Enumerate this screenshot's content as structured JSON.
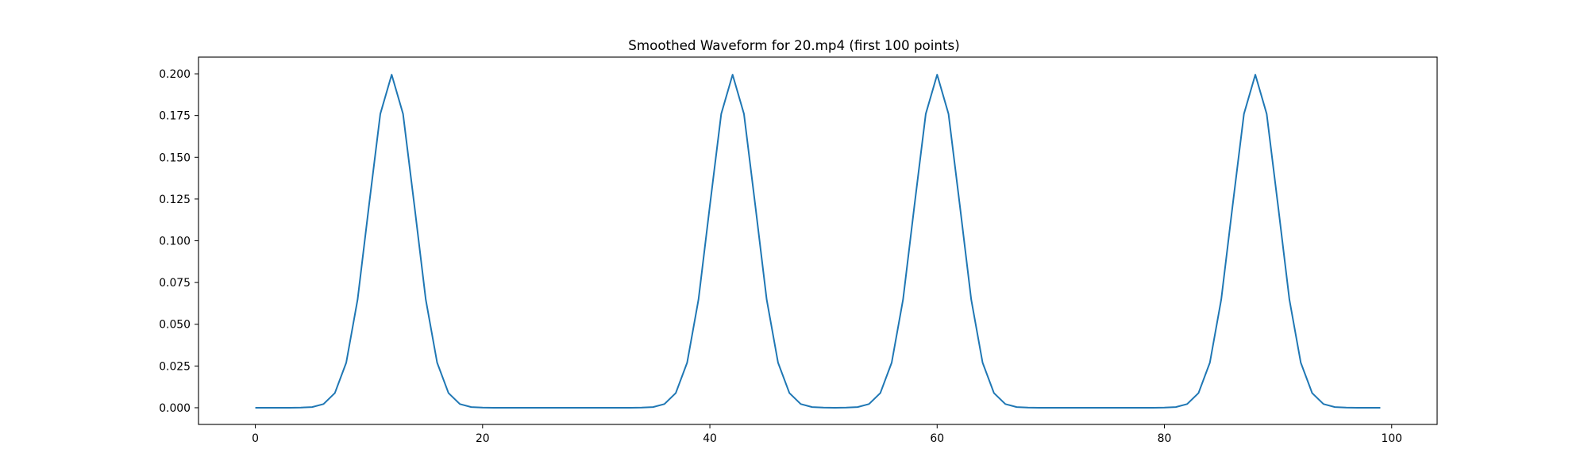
{
  "chart_data": {
    "type": "line",
    "title": "Smoothed Waveform for 20.mp4 (first 100 points)",
    "xlabel": "",
    "ylabel": "",
    "xlim": [
      -5,
      104
    ],
    "ylim": [
      -0.01,
      0.21
    ],
    "x_ticks": [
      0,
      20,
      40,
      60,
      80,
      100
    ],
    "x_tick_labels": [
      "0",
      "20",
      "40",
      "60",
      "80",
      "100"
    ],
    "y_ticks": [
      0.0,
      0.025,
      0.05,
      0.075,
      0.1,
      0.125,
      0.15,
      0.175,
      0.2
    ],
    "y_tick_labels": [
      "0.000",
      "0.025",
      "0.050",
      "0.075",
      "0.100",
      "0.125",
      "0.150",
      "0.175",
      "0.200"
    ],
    "grid": false,
    "line_color": "#1f77b4",
    "series": [
      {
        "x": [
          0,
          1,
          2,
          3,
          4,
          5,
          6,
          7,
          8,
          9,
          10,
          11,
          12,
          13,
          14,
          15,
          16,
          17,
          18,
          19,
          20,
          21,
          22,
          23,
          24,
          25,
          26,
          27,
          28,
          29,
          30,
          31,
          32,
          33,
          34,
          35,
          36,
          37,
          38,
          39,
          40,
          41,
          42,
          43,
          44,
          45,
          46,
          47,
          48,
          49,
          50,
          51,
          52,
          53,
          54,
          55,
          56,
          57,
          58,
          59,
          60,
          61,
          62,
          63,
          64,
          65,
          66,
          67,
          68,
          69,
          70,
          71,
          72,
          73,
          74,
          75,
          76,
          77,
          78,
          79,
          80,
          81,
          82,
          83,
          84,
          85,
          86,
          87,
          88,
          89,
          90,
          91,
          92,
          93,
          94,
          95,
          96,
          97,
          98,
          99
        ],
        "y": [
          0,
          0,
          0,
          0,
          0.0001,
          0.0004,
          0.0022,
          0.0088,
          0.027,
          0.0648,
          0.121,
          0.176,
          0.1995,
          0.176,
          0.121,
          0.0648,
          0.027,
          0.0088,
          0.0022,
          0.0004,
          0.0001,
          0,
          0,
          0,
          0,
          0,
          0,
          0,
          0,
          0,
          0,
          0,
          0,
          0,
          0.0001,
          0.0004,
          0.0022,
          0.0088,
          0.027,
          0.0648,
          0.121,
          0.176,
          0.1995,
          0.176,
          0.121,
          0.0648,
          0.027,
          0.0088,
          0.0022,
          0.0004,
          0.0001,
          0,
          0.0001,
          0.0004,
          0.0022,
          0.0088,
          0.027,
          0.0648,
          0.121,
          0.176,
          0.1995,
          0.176,
          0.121,
          0.0648,
          0.027,
          0.0088,
          0.0022,
          0.0004,
          0.0001,
          0,
          0,
          0,
          0,
          0,
          0,
          0,
          0,
          0,
          0,
          0,
          0.0001,
          0.0004,
          0.0022,
          0.0088,
          0.027,
          0.0648,
          0.121,
          0.176,
          0.1995,
          0.176,
          0.121,
          0.0648,
          0.027,
          0.0088,
          0.0022,
          0.0004,
          0.0001,
          0,
          0,
          0
        ]
      }
    ]
  }
}
